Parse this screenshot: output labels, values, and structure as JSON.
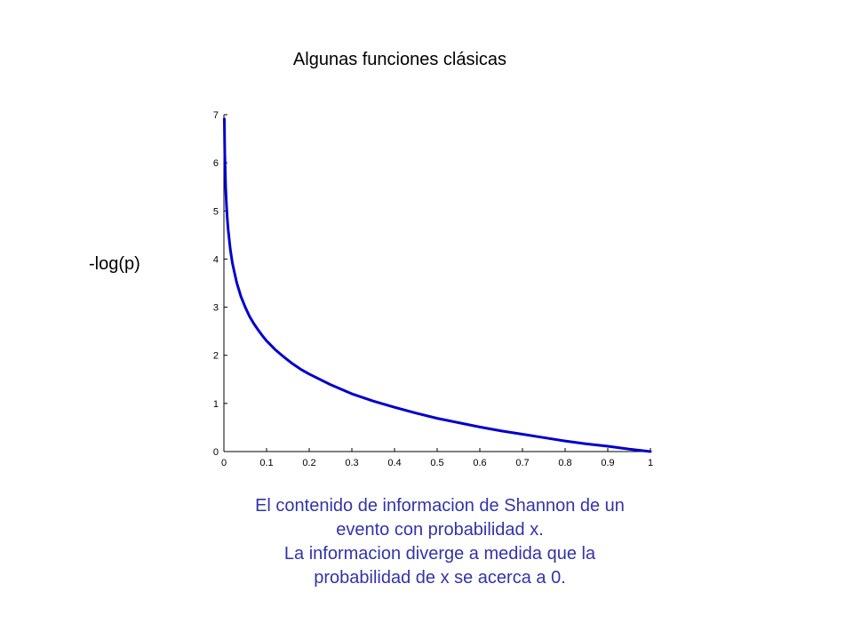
{
  "slide": {
    "title": "Algunas funciones clásicas",
    "caption_lines": [
      "El contenido de informacion de Shannon de un",
      "evento con probabilidad x.",
      "La informacion diverge a medida que la",
      "probabilidad de x se acerca a 0."
    ],
    "caption_color": "#3333aa"
  },
  "chart_data": {
    "type": "line",
    "title": "",
    "xlabel": "",
    "ylabel": "-log(p)",
    "xlim": [
      0,
      1
    ],
    "ylim": [
      0,
      7
    ],
    "xticks": [
      0,
      0.1,
      0.2,
      0.3,
      0.4,
      0.5,
      0.6,
      0.7,
      0.8,
      0.9,
      1
    ],
    "xtick_labels": [
      "0",
      "0.1",
      "0.2",
      "0.3",
      "0.4",
      "0.5",
      "0.6",
      "0.7",
      "0.8",
      "0.9",
      "1"
    ],
    "yticks": [
      0,
      1,
      2,
      3,
      4,
      5,
      6,
      7
    ],
    "ytick_labels": [
      "0",
      "1",
      "2",
      "3",
      "4",
      "5",
      "6",
      "7"
    ],
    "grid": false,
    "line_color": "#0000cc",
    "series": [
      {
        "x": [
          0.001,
          0.002,
          0.004,
          0.006,
          0.008,
          0.01,
          0.015,
          0.02,
          0.03,
          0.04,
          0.05,
          0.06,
          0.07,
          0.08,
          0.09,
          0.1,
          0.12,
          0.14,
          0.16,
          0.18,
          0.2,
          0.25,
          0.3,
          0.35,
          0.4,
          0.45,
          0.5,
          0.55,
          0.6,
          0.65,
          0.7,
          0.75,
          0.8,
          0.85,
          0.9,
          0.95,
          1.0
        ],
        "y": [
          6.91,
          6.21,
          5.52,
          5.12,
          4.83,
          4.61,
          4.2,
          3.91,
          3.51,
          3.22,
          3.0,
          2.81,
          2.66,
          2.53,
          2.41,
          2.3,
          2.12,
          1.97,
          1.83,
          1.71,
          1.61,
          1.39,
          1.2,
          1.05,
          0.92,
          0.8,
          0.69,
          0.6,
          0.51,
          0.43,
          0.36,
          0.29,
          0.22,
          0.16,
          0.11,
          0.05,
          0.0
        ]
      }
    ]
  }
}
